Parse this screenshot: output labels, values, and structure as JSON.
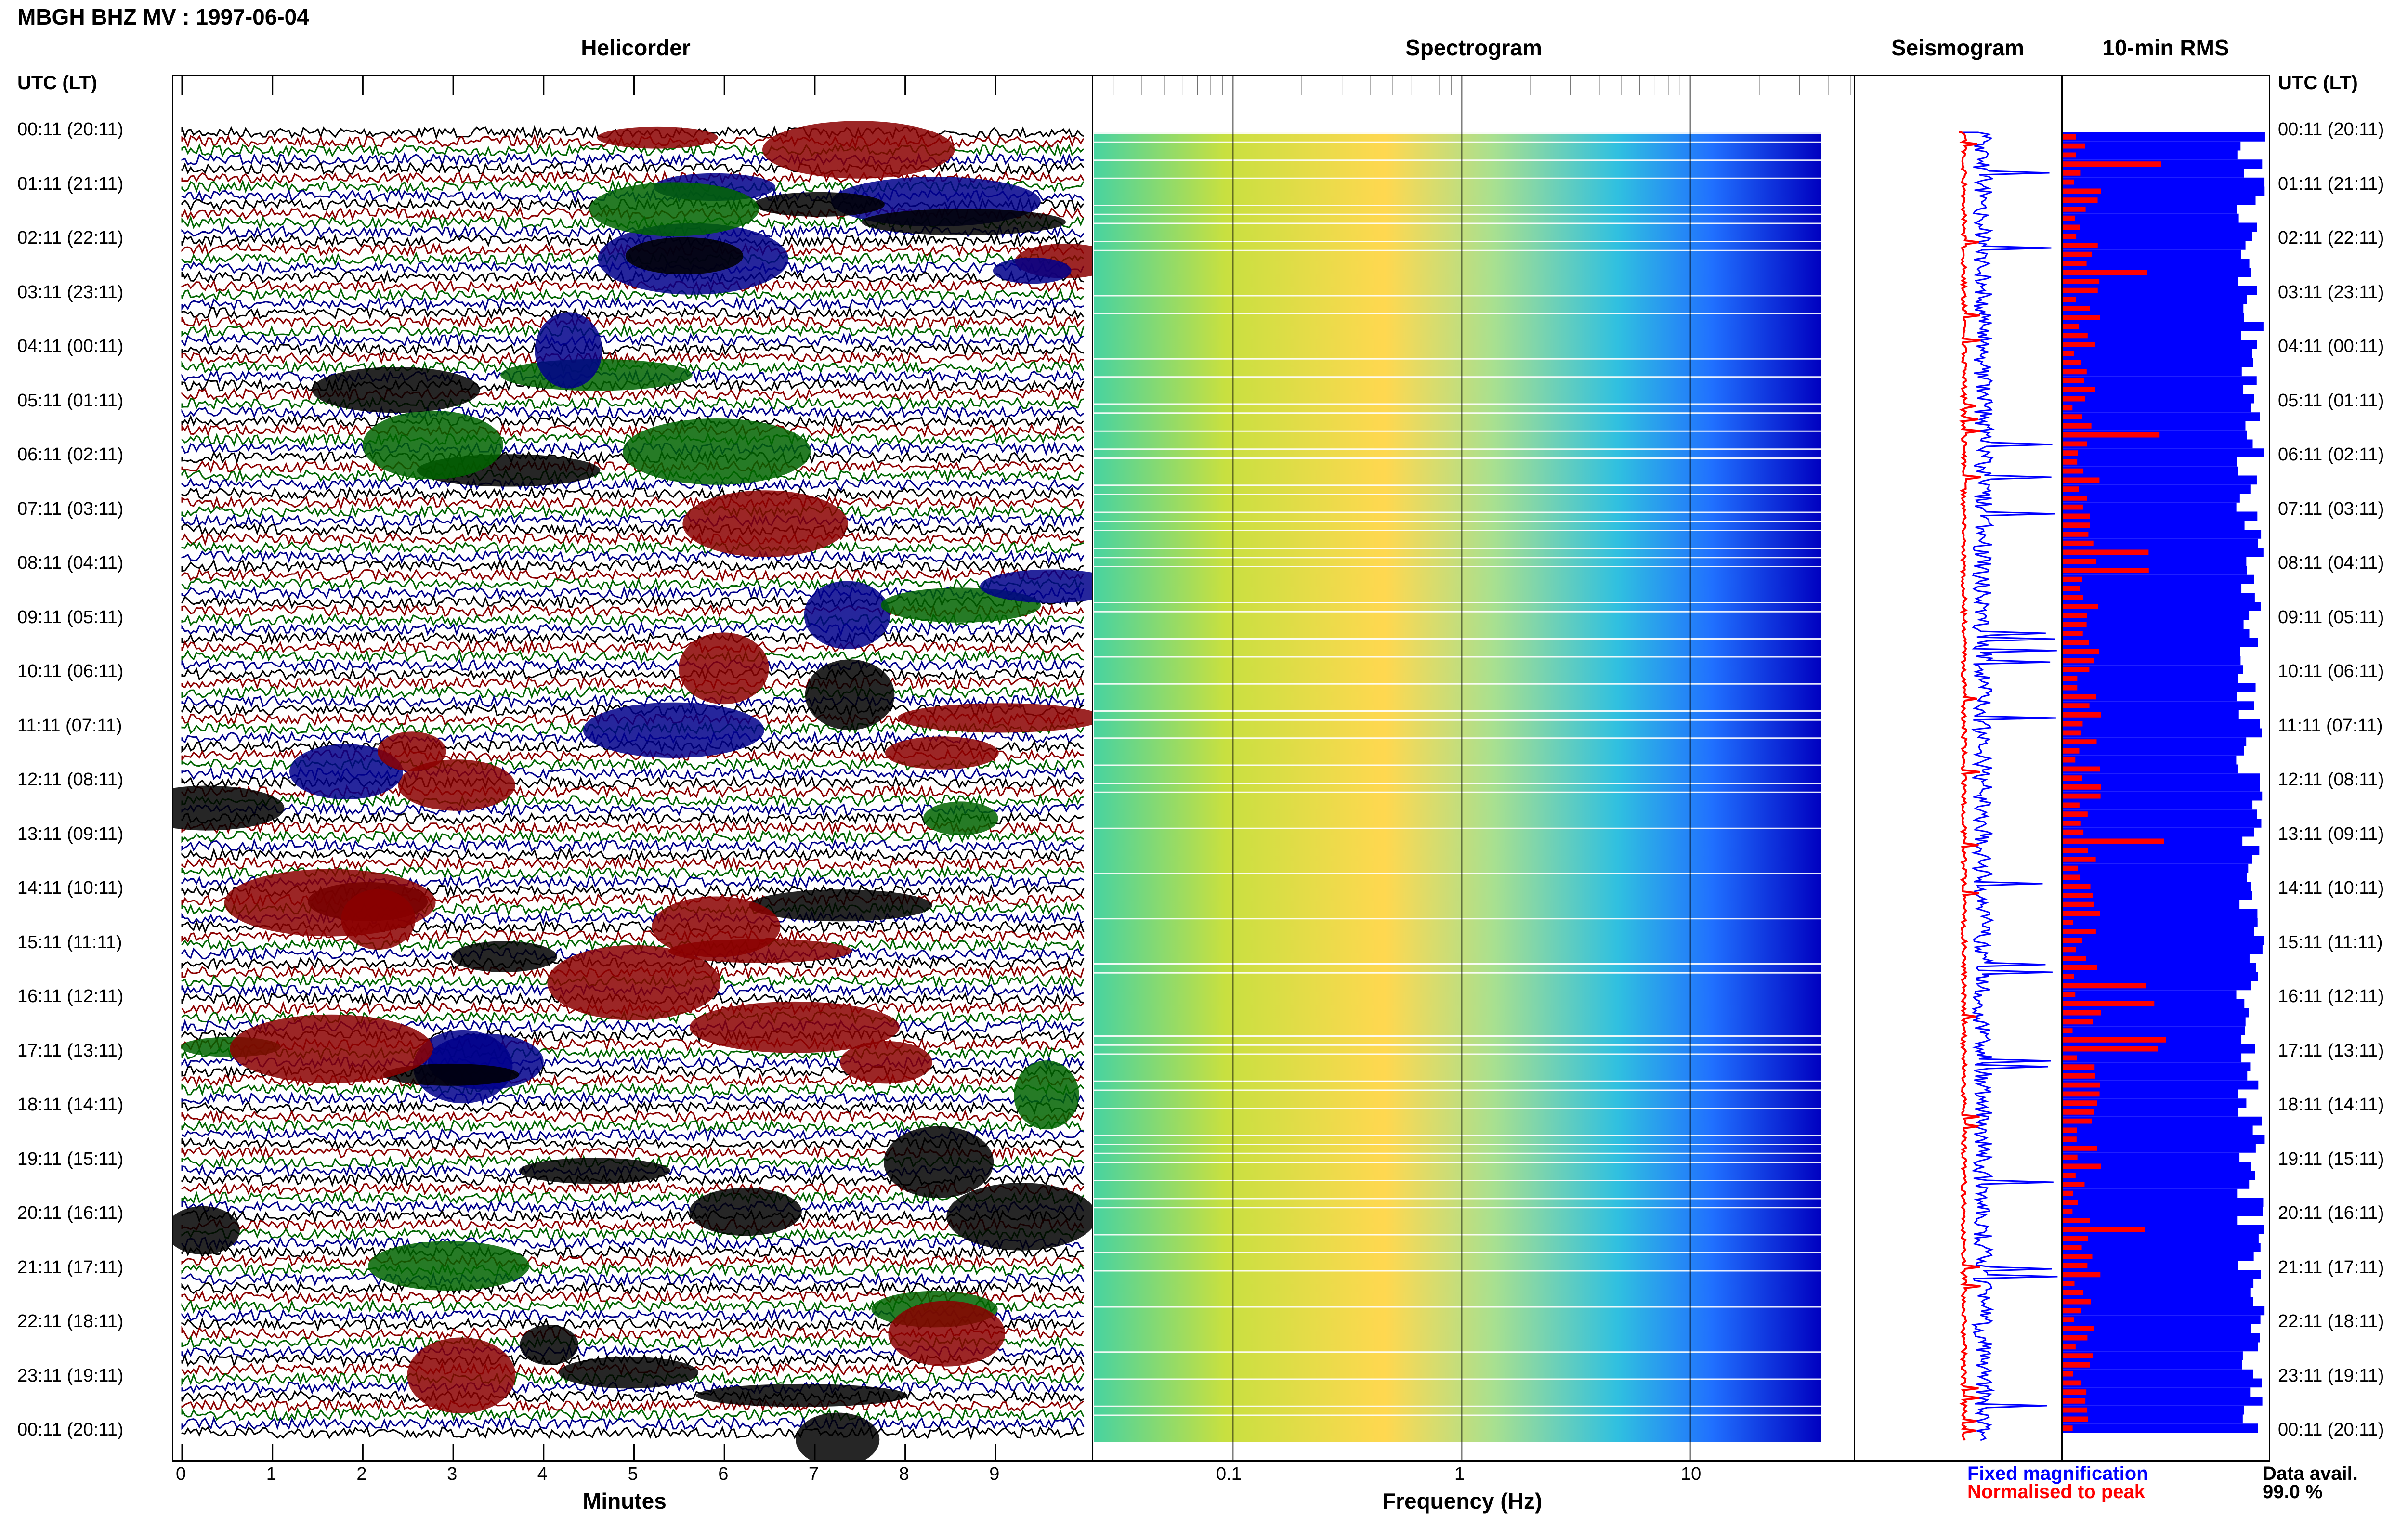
{
  "title": "MBGH BHZ MV : 1997-06-04",
  "panels": {
    "helicorder": "Helicorder",
    "spectrogram": "Spectrogram",
    "seismogram": "Seismogram",
    "rms": "10-min RMS"
  },
  "time_header": "UTC (LT)",
  "time_labels": [
    "00:11 (20:11)",
    "01:11 (21:11)",
    "02:11 (22:11)",
    "03:11 (23:11)",
    "04:11 (00:11)",
    "05:11 (01:11)",
    "06:11 (02:11)",
    "07:11 (03:11)",
    "08:11 (04:11)",
    "09:11 (05:11)",
    "10:11 (06:11)",
    "11:11 (07:11)",
    "12:11 (08:11)",
    "13:11 (09:11)",
    "14:11 (10:11)",
    "15:11 (11:11)",
    "16:11 (12:11)",
    "17:11 (13:11)",
    "18:11 (14:11)",
    "19:11 (15:11)",
    "20:11 (16:11)",
    "21:11 (17:11)",
    "22:11 (18:11)",
    "23:11 (19:11)",
    "00:11 (20:11)"
  ],
  "helicorder_axis": {
    "label": "Minutes",
    "ticks": [
      "0",
      "1",
      "2",
      "3",
      "4",
      "5",
      "6",
      "7",
      "8",
      "9"
    ]
  },
  "spectrogram_axis": {
    "label": "Frequency (Hz)",
    "ticks": [
      "0.1",
      "1",
      "10"
    ]
  },
  "legend": {
    "fixed": "Fixed magnification",
    "normalised": "Normalised to peak",
    "fixed_color": "#0000ff",
    "normalised_color": "#ff0000"
  },
  "data_avail": {
    "label": "Data avail.",
    "value": "99.0 %"
  },
  "colors": {
    "trace": [
      "#000000",
      "#8b0000",
      "#006400",
      "#00008b"
    ],
    "seis_fixed": "#0000ff",
    "seis_norm": "#ff0000",
    "rms_fixed": "#0000ff",
    "rms_norm": "#ff0000"
  }
}
